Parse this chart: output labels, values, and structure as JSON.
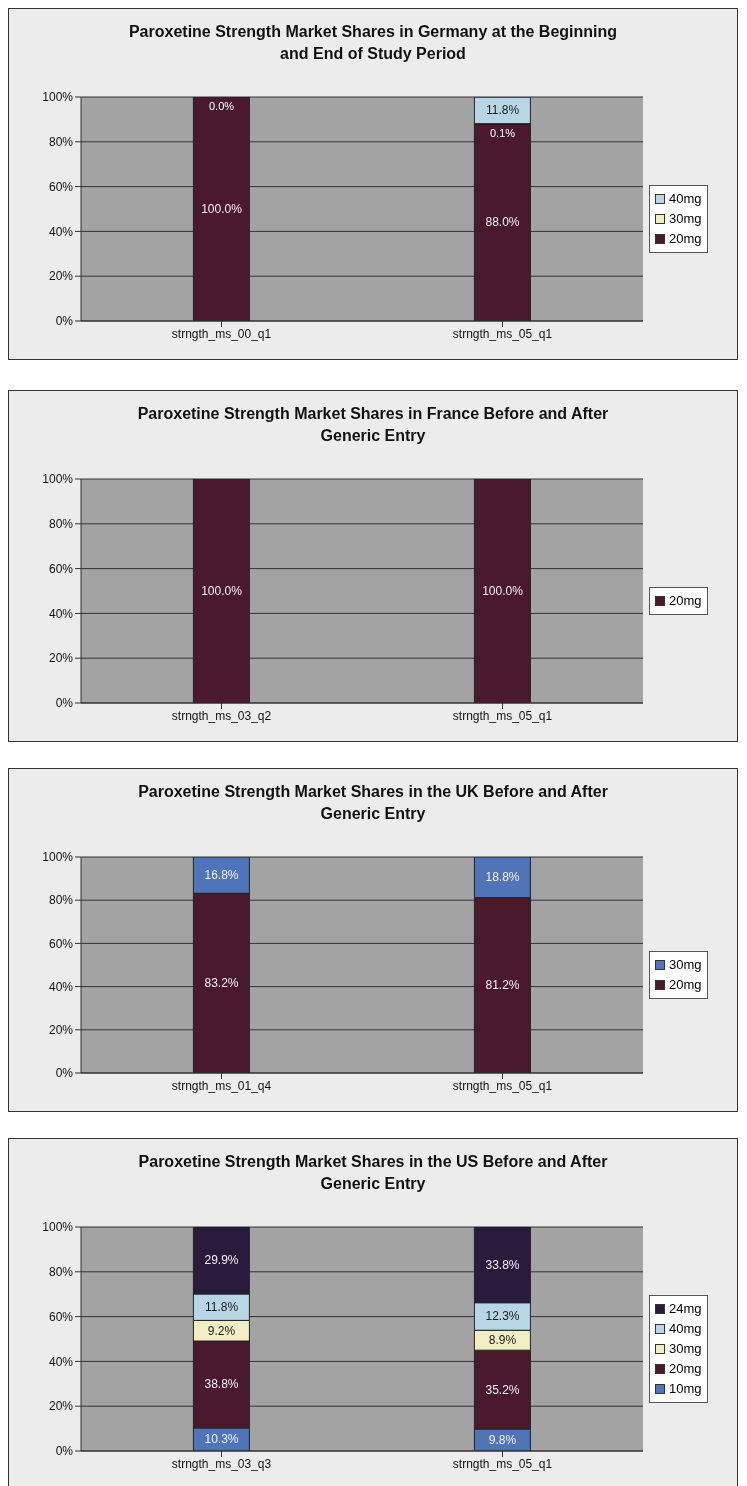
{
  "chart_data": [
    {
      "type": "bar",
      "title": "Paroxetine Strength Market Shares in Germany at the Beginning and End of Study Period",
      "categories": [
        "strngth_ms_00_q1",
        "strngth_ms_05_q1"
      ],
      "stacked": true,
      "ylim": [
        0,
        100
      ],
      "yticks": [
        {
          "value": 0,
          "label": "0%"
        },
        {
          "value": 20,
          "label": "20%"
        },
        {
          "value": 40,
          "label": "40%"
        },
        {
          "value": 60,
          "label": "60%"
        },
        {
          "value": 80,
          "label": "80%"
        },
        {
          "value": 100,
          "label": "100%"
        }
      ],
      "grid": "y",
      "legend": "right",
      "series": [
        {
          "name": "20mg",
          "color": "#4a1a2c",
          "values": [
            100.0,
            88.0
          ],
          "value_labels": [
            "100.0%",
            "88.0%"
          ]
        },
        {
          "name": "30mg",
          "color": "#f2eec4",
          "values": [
            0.0,
            0.1
          ],
          "value_labels": [
            "0.0%",
            "0.1%"
          ]
        },
        {
          "name": "40mg",
          "color": "#b8d6e6",
          "values": [
            0,
            11.8
          ],
          "value_labels": [
            null,
            "11.8%"
          ]
        }
      ]
    },
    {
      "type": "bar",
      "title": "Paroxetine Strength Market Shares in France Before and After Generic Entry",
      "categories": [
        "strngth_ms_03_q2",
        "strngth_ms_05_q1"
      ],
      "stacked": true,
      "ylim": [
        0,
        100
      ],
      "yticks": [
        {
          "value": 0,
          "label": "0%"
        },
        {
          "value": 20,
          "label": "20%"
        },
        {
          "value": 40,
          "label": "40%"
        },
        {
          "value": 60,
          "label": "60%"
        },
        {
          "value": 80,
          "label": "80%"
        },
        {
          "value": 100,
          "label": "100%"
        }
      ],
      "grid": "y",
      "legend": "right",
      "series": [
        {
          "name": "20mg",
          "color": "#4a1a2c",
          "values": [
            100.0,
            100.0
          ],
          "value_labels": [
            "100.0%",
            "100.0%"
          ]
        }
      ]
    },
    {
      "type": "bar",
      "title": "Paroxetine Strength Market Shares in the UK Before and After Generic Entry",
      "categories": [
        "strngth_ms_01_q4",
        "strngth_ms_05_q1"
      ],
      "stacked": true,
      "ylim": [
        0,
        100
      ],
      "yticks": [
        {
          "value": 0,
          "label": "0%"
        },
        {
          "value": 20,
          "label": "20%"
        },
        {
          "value": 40,
          "label": "40%"
        },
        {
          "value": 60,
          "label": "60%"
        },
        {
          "value": 80,
          "label": "80%"
        },
        {
          "value": 100,
          "label": "100%"
        }
      ],
      "grid": "y",
      "legend": "right",
      "series": [
        {
          "name": "20mg",
          "color": "#4a1a2c",
          "values": [
            83.2,
            81.2
          ],
          "value_labels": [
            "83.2%",
            "81.2%"
          ]
        },
        {
          "name": "30mg",
          "color": "#4f74b8",
          "values": [
            16.8,
            18.8
          ],
          "value_labels": [
            "16.8%",
            "18.8%"
          ]
        }
      ]
    },
    {
      "type": "bar",
      "title": "Paroxetine Strength Market Shares in the US Before and After Generic Entry",
      "categories": [
        "strngth_ms_03_q3",
        "strngth_ms_05_q1"
      ],
      "stacked": true,
      "ylim": [
        0,
        100
      ],
      "yticks": [
        {
          "value": 0,
          "label": "0%"
        },
        {
          "value": 20,
          "label": "20%"
        },
        {
          "value": 40,
          "label": "40%"
        },
        {
          "value": 60,
          "label": "60%"
        },
        {
          "value": 80,
          "label": "80%"
        },
        {
          "value": 100,
          "label": "100%"
        }
      ],
      "grid": "y",
      "legend": "right",
      "series": [
        {
          "name": "10mg",
          "color": "#4f74b8",
          "values": [
            10.3,
            9.8
          ],
          "value_labels": [
            "10.3%",
            "9.8%"
          ]
        },
        {
          "name": "20mg",
          "color": "#4a1a2c",
          "values": [
            38.8,
            35.2
          ],
          "value_labels": [
            "38.8%",
            "35.2%"
          ]
        },
        {
          "name": "30mg",
          "color": "#f2eec4",
          "values": [
            9.2,
            8.9
          ],
          "value_labels": [
            "9.2%",
            "8.9%"
          ]
        },
        {
          "name": "40mg",
          "color": "#b8d6e6",
          "values": [
            11.8,
            12.3
          ],
          "value_labels": [
            "11.8%",
            "12.3%"
          ]
        },
        {
          "name": "24mg",
          "color": "#2a1a3c",
          "values": [
            29.9,
            33.8
          ],
          "value_labels": [
            "29.9%",
            "33.8%"
          ]
        }
      ]
    }
  ]
}
